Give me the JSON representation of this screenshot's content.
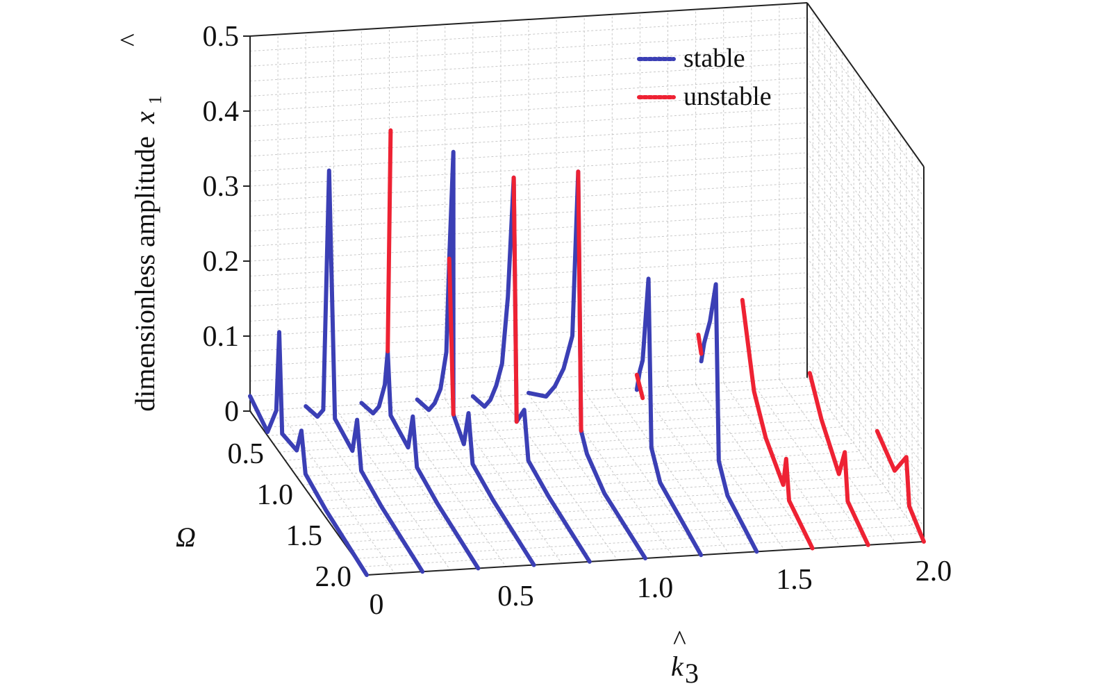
{
  "chart_data": {
    "type": "line",
    "projection": "3d",
    "x_axis": {
      "label_symbol": "k",
      "label_subscript": "3",
      "range": [
        0,
        2.0
      ],
      "ticks": [
        "0",
        "0.5",
        "1.0",
        "1.5",
        "2.0"
      ]
    },
    "y_axis": {
      "label": "Ω",
      "range": [
        0,
        2.0
      ],
      "ticks": [
        "0.5",
        "1.0",
        "1.5",
        "2.0"
      ]
    },
    "z_axis": {
      "label": "dimensionless amplitude",
      "label_symbol": "x",
      "label_subscript": "1",
      "range": [
        0,
        0.5
      ],
      "ticks": [
        "0",
        "0.1",
        "0.2",
        "0.3",
        "0.4",
        "0.5"
      ]
    },
    "grid": true,
    "legend_position": "top-right",
    "colors": {
      "stable": "#3b3fb5",
      "unstable": "#ee2233"
    },
    "legend": [
      {
        "key": "stable",
        "label": "stable"
      },
      {
        "key": "unstable",
        "label": "unstable"
      }
    ],
    "series": [
      {
        "k3": 0.0,
        "segments": [
          {
            "state": "stable",
            "points": [
              [
                0,
                0.02
              ],
              [
                0.3,
                0.005
              ],
              [
                0.45,
                0.05
              ],
              [
                0.5,
                0.16
              ],
              [
                0.55,
                0.03
              ],
              [
                0.8,
                0.035
              ],
              [
                0.88,
                0.07
              ],
              [
                0.95,
                0.02
              ],
              [
                1.3,
                0.01
              ],
              [
                2.0,
                0.0
              ]
            ]
          }
        ]
      },
      {
        "k3": 0.2,
        "segments": [
          {
            "state": "stable",
            "points": [
              [
                0,
                0.002
              ],
              [
                0.2,
                0.01
              ],
              [
                0.3,
                0.03
              ],
              [
                0.4,
                0.36
              ],
              [
                0.5,
                0.04
              ],
              [
                0.8,
                0.03
              ],
              [
                0.88,
                0.08
              ],
              [
                0.95,
                0.02
              ],
              [
                1.3,
                0.01
              ],
              [
                2.0,
                0.0
              ]
            ]
          }
        ]
      },
      {
        "k3": 0.4,
        "segments": [
          {
            "state": "stable",
            "points": [
              [
                0,
                0.002
              ],
              [
                0.2,
                0.01
              ],
              [
                0.3,
                0.03
              ],
              [
                0.4,
                0.07
              ],
              [
                0.45,
                0.12
              ],
              [
                0.5,
                0.04
              ],
              [
                0.8,
                0.03
              ],
              [
                0.88,
                0.08
              ],
              [
                0.95,
                0.02
              ],
              [
                1.3,
                0.01
              ],
              [
                2.0,
                0.0
              ]
            ]
          },
          {
            "state": "unstable",
            "points": [
              [
                0.45,
                0.12
              ],
              [
                0.5,
                0.42
              ]
            ]
          }
        ]
      },
      {
        "k3": 0.6,
        "segments": [
          {
            "state": "stable",
            "points": [
              [
                0,
                0.002
              ],
              [
                0.2,
                0.01
              ],
              [
                0.3,
                0.03
              ],
              [
                0.4,
                0.06
              ],
              [
                0.5,
                0.12
              ],
              [
                0.55,
                0.25
              ],
              [
                0.62,
                0.4
              ],
              [
                0.62,
                0.05
              ],
              [
                0.8,
                0.03
              ],
              [
                0.88,
                0.08
              ],
              [
                0.95,
                0.02
              ],
              [
                1.3,
                0.01
              ],
              [
                2.0,
                0.0
              ]
            ]
          },
          {
            "state": "unstable",
            "points": [
              [
                0.55,
                0.25
              ],
              [
                0.62,
                0.05
              ]
            ]
          }
        ]
      },
      {
        "k3": 0.8,
        "segments": [
          {
            "state": "stable",
            "points": [
              [
                0,
                0.002
              ],
              [
                0.2,
                0.01
              ],
              [
                0.3,
                0.03
              ],
              [
                0.4,
                0.06
              ],
              [
                0.5,
                0.1
              ],
              [
                0.6,
                0.2
              ],
              [
                0.7,
                0.37
              ],
              [
                0.75,
                0.05
              ],
              [
                0.88,
                0.08
              ],
              [
                0.95,
                0.02
              ],
              [
                1.3,
                0.01
              ],
              [
                2.0,
                0.0
              ]
            ]
          },
          {
            "state": "unstable",
            "points": [
              [
                0.7,
                0.37
              ],
              [
                0.75,
                0.05
              ]
            ]
          }
        ]
      },
      {
        "k3": 1.0,
        "segments": [
          {
            "state": "stable",
            "points": [
              [
                0,
                0.002
              ],
              [
                0.3,
                0.03
              ],
              [
                0.45,
                0.06
              ],
              [
                0.6,
                0.1
              ],
              [
                0.75,
                0.16
              ],
              [
                0.85,
                0.39
              ],
              [
                0.9,
                0.05
              ],
              [
                1.0,
                0.03
              ],
              [
                1.3,
                0.01
              ],
              [
                2.0,
                0.0
              ]
            ]
          },
          {
            "state": "unstable",
            "points": [
              [
                0.85,
                0.39
              ],
              [
                0.9,
                0.05
              ]
            ]
          }
        ]
      },
      {
        "k3": 1.2,
        "segments": [
          {
            "state": "stable",
            "points": [
              [
                0.9,
                0.1
              ],
              [
                0.95,
                0.13
              ],
              [
                1.0,
                0.15
              ],
              [
                1.1,
                0.27
              ],
              [
                1.15,
                0.05
              ],
              [
                1.3,
                0.02
              ],
              [
                2.0,
                0.0
              ]
            ]
          },
          {
            "state": "unstable",
            "points": [
              [
                0.9,
                0.12
              ],
              [
                1.0,
                0.1
              ]
            ]
          }
        ]
      },
      {
        "k3": 1.4,
        "segments": [
          {
            "state": "stable",
            "points": [
              [
                1.05,
                0.15
              ],
              [
                1.1,
                0.18
              ],
              [
                1.2,
                0.22
              ],
              [
                1.3,
                0.28
              ],
              [
                1.35,
                0.05
              ],
              [
                1.5,
                0.02
              ],
              [
                2.0,
                0.0
              ]
            ]
          },
          {
            "state": "unstable",
            "points": [
              [
                1.0,
                0.18
              ],
              [
                1.05,
                0.16
              ]
            ]
          }
        ]
      },
      {
        "k3": 1.6,
        "segments": [
          {
            "state": "unstable",
            "points": [
              [
                0.8,
                0.2
              ],
              [
                1.0,
                0.1
              ],
              [
                1.2,
                0.06
              ],
              [
                1.5,
                0.03
              ],
              [
                1.55,
                0.07
              ],
              [
                1.6,
                0.02
              ],
              [
                2.0,
                0.0
              ]
            ]
          }
        ]
      },
      {
        "k3": 1.8,
        "segments": [
          {
            "state": "unstable",
            "points": [
              [
                1.0,
                0.12
              ],
              [
                1.2,
                0.08
              ],
              [
                1.5,
                0.04
              ],
              [
                1.6,
                0.08
              ],
              [
                1.65,
                0.02
              ],
              [
                2.0,
                0.0
              ]
            ]
          }
        ]
      },
      {
        "k3": 2.0,
        "segments": [
          {
            "state": "unstable",
            "points": [
              [
                1.2,
                0.06
              ],
              [
                1.5,
                0.04
              ],
              [
                1.7,
                0.08
              ],
              [
                1.75,
                0.02
              ],
              [
                2.0,
                0.0
              ]
            ]
          }
        ]
      }
    ]
  }
}
